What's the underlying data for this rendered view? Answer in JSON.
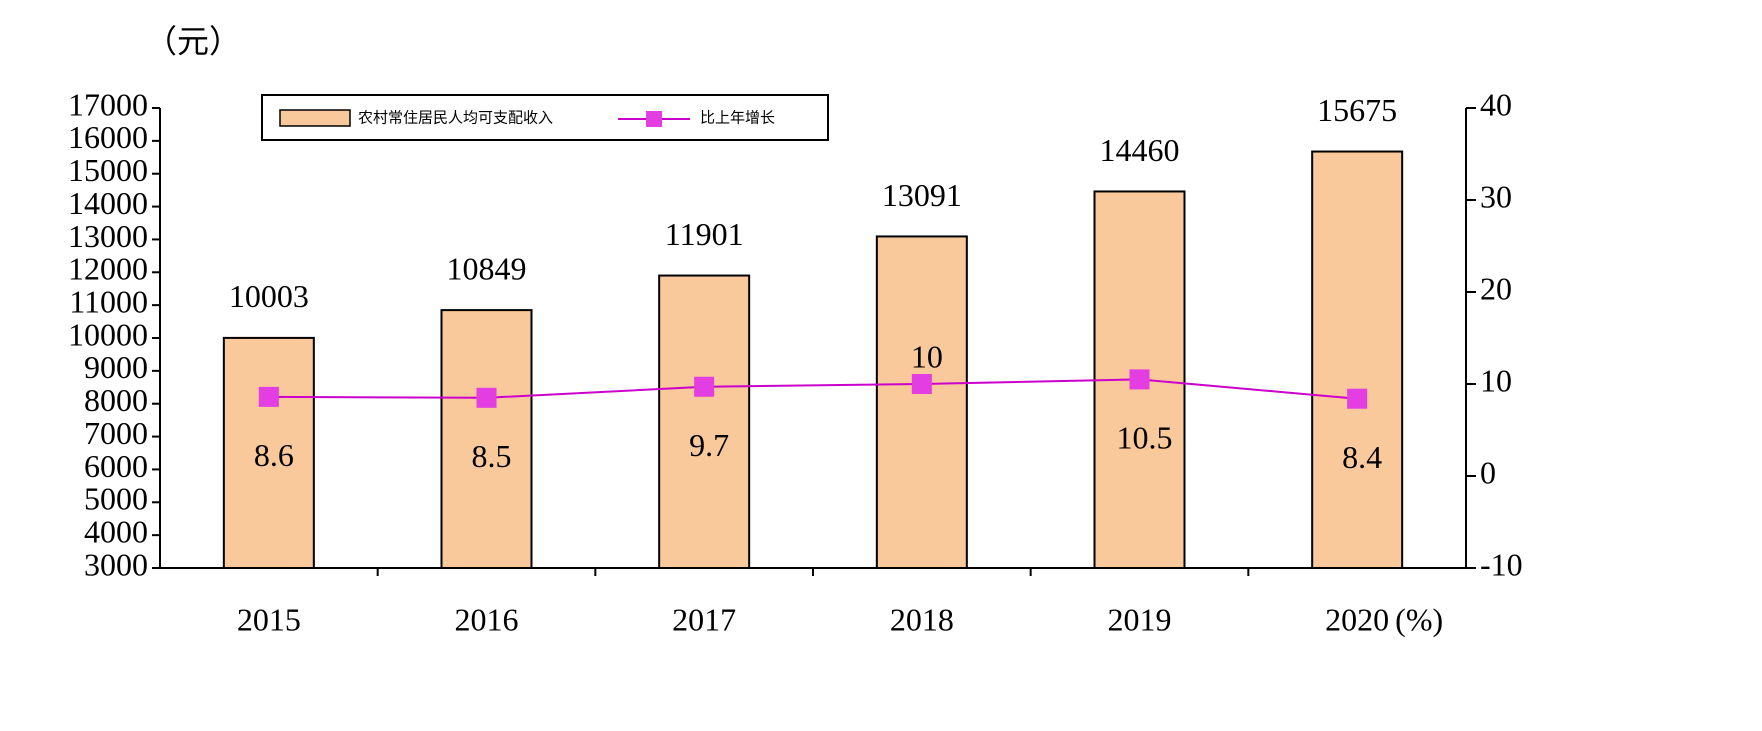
{
  "chart_data": {
    "type": "bar-line",
    "y_label": "（元）",
    "y2_label": "(%)",
    "categories": [
      "2015",
      "2016",
      "2017",
      "2018",
      "2019",
      "2020"
    ],
    "series": [
      {
        "name": "农村常住居民人均可支配收入",
        "type": "bar",
        "color": "#f9c89b",
        "values": [
          10003,
          10849,
          11901,
          13091,
          14460,
          15675
        ]
      },
      {
        "name": "比上年增长",
        "type": "line",
        "axis": "y2",
        "color": "#cc00cc",
        "values": [
          8.6,
          8.5,
          9.7,
          10,
          10.5,
          8.4
        ]
      }
    ],
    "ylim": [
      3000,
      17000
    ],
    "yticks": [
      3000,
      4000,
      5000,
      6000,
      7000,
      8000,
      9000,
      10000,
      11000,
      12000,
      13000,
      14000,
      15000,
      16000,
      17000
    ],
    "y2lim": [
      -10,
      40
    ],
    "y2ticks": [
      -10,
      0,
      10,
      20,
      30,
      40
    ],
    "legend": "top-left"
  }
}
